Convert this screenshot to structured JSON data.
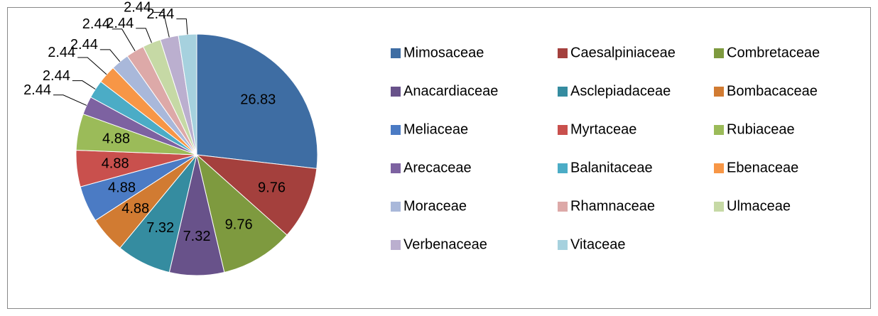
{
  "chart_data": {
    "type": "pie",
    "categories": [
      "Mimosaceae",
      "Caesalpiniaceae",
      "Combretaceae",
      "Anacardiaceae",
      "Asclepiadaceae",
      "Bombacaceae",
      "Meliaceae",
      "Myrtaceae",
      "Rubiaceae",
      "Arecaceae",
      "Balanitaceae",
      "Ebenaceae",
      "Moraceae",
      "Rhamnaceae",
      "Ulmaceae",
      "Verbenaceae",
      "Vitaceae"
    ],
    "values": [
      26.83,
      9.76,
      9.76,
      7.32,
      7.32,
      4.88,
      4.88,
      4.88,
      4.88,
      2.44,
      2.44,
      2.44,
      2.44,
      2.44,
      2.44,
      2.44,
      2.44
    ],
    "colors": [
      "#3e6da3",
      "#a4403d",
      "#7e9a3f",
      "#68528a",
      "#358ca0",
      "#d17b32",
      "#4b7bc4",
      "#c9504d",
      "#9bbb59",
      "#7d62a1",
      "#4bacc6",
      "#f79646",
      "#a9b8da",
      "#dda9a8",
      "#c6d9a5",
      "#bbafcf",
      "#a6d1de"
    ],
    "legend": "right"
  }
}
